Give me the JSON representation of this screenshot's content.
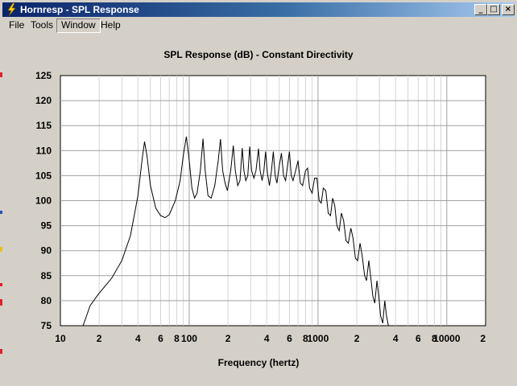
{
  "window": {
    "title": "Hornresp - SPL Response",
    "buttons": {
      "minimize": "_",
      "maximize": "□",
      "close": "×"
    }
  },
  "menu": {
    "items": [
      "File",
      "Tools",
      "Window",
      "Help"
    ],
    "active": "Window"
  },
  "colors": {
    "title_start": "#0a246a",
    "title_end": "#a6caf0",
    "face": "#d4d0c8",
    "plot_bg": "#ffffff",
    "curve": "#000000"
  },
  "chart_data": {
    "type": "line",
    "title": "SPL Response (dB) - Constant Directivity",
    "xlabel": "Frequency (hertz)",
    "ylabel": "",
    "x_scale": "log",
    "xlim": [
      10,
      20000
    ],
    "ylim": [
      75,
      125
    ],
    "grid": true,
    "x_tick_labels": [
      "10",
      "2",
      "4",
      "6",
      "8",
      "100",
      "2",
      "4",
      "6",
      "8",
      "1000",
      "2",
      "4",
      "6",
      "8",
      "10000",
      "2"
    ],
    "x_tick_values": [
      10,
      20,
      40,
      60,
      80,
      100,
      200,
      400,
      600,
      800,
      1000,
      2000,
      4000,
      6000,
      8000,
      10000,
      20000
    ],
    "y_tick_labels": [
      "125",
      "120",
      "115",
      "110",
      "105",
      "100",
      "95",
      "90",
      "85",
      "80",
      "75"
    ],
    "series": [
      {
        "points": [
          [
            15,
            75
          ],
          [
            17,
            79
          ],
          [
            20,
            81.5
          ],
          [
            25,
            84.5
          ],
          [
            30,
            88
          ],
          [
            35,
            93
          ],
          [
            40,
            101
          ],
          [
            43,
            108
          ],
          [
            45,
            111.8
          ],
          [
            47,
            109
          ],
          [
            50,
            103
          ],
          [
            55,
            98.5
          ],
          [
            60,
            97
          ],
          [
            65,
            96.6
          ],
          [
            70,
            97.2
          ],
          [
            78,
            100
          ],
          [
            85,
            104
          ],
          [
            90,
            109
          ],
          [
            95,
            112.8
          ],
          [
            100,
            108
          ],
          [
            105,
            102.5
          ],
          [
            110,
            100.5
          ],
          [
            115,
            101.5
          ],
          [
            122,
            106
          ],
          [
            128,
            112.4
          ],
          [
            133,
            106
          ],
          [
            140,
            101
          ],
          [
            148,
            100.5
          ],
          [
            158,
            103
          ],
          [
            168,
            108
          ],
          [
            175,
            112.3
          ],
          [
            182,
            106
          ],
          [
            190,
            103.5
          ],
          [
            198,
            102
          ],
          [
            210,
            106
          ],
          [
            220,
            111
          ],
          [
            228,
            106
          ],
          [
            238,
            103
          ],
          [
            248,
            104
          ],
          [
            258,
            110.5
          ],
          [
            266,
            106
          ],
          [
            275,
            104
          ],
          [
            285,
            105
          ],
          [
            295,
            110.8
          ],
          [
            305,
            106
          ],
          [
            318,
            104.5
          ],
          [
            330,
            106
          ],
          [
            345,
            110.4
          ],
          [
            355,
            106
          ],
          [
            368,
            104
          ],
          [
            380,
            106
          ],
          [
            392,
            109.8
          ],
          [
            405,
            105.5
          ],
          [
            420,
            103
          ],
          [
            435,
            106
          ],
          [
            450,
            109.8
          ],
          [
            465,
            105
          ],
          [
            480,
            103.5
          ],
          [
            500,
            107
          ],
          [
            520,
            109.5
          ],
          [
            540,
            105
          ],
          [
            560,
            104
          ],
          [
            580,
            107
          ],
          [
            600,
            109.8
          ],
          [
            620,
            105
          ],
          [
            640,
            104
          ],
          [
            670,
            106
          ],
          [
            700,
            108
          ],
          [
            730,
            103.5
          ],
          [
            760,
            103
          ],
          [
            800,
            106
          ],
          [
            830,
            106.5
          ],
          [
            860,
            102.5
          ],
          [
            900,
            101.5
          ],
          [
            940,
            104.5
          ],
          [
            980,
            104.5
          ],
          [
            1020,
            100
          ],
          [
            1060,
            99.5
          ],
          [
            1100,
            102.5
          ],
          [
            1150,
            102
          ],
          [
            1200,
            97.5
          ],
          [
            1250,
            97
          ],
          [
            1300,
            100.5
          ],
          [
            1350,
            99
          ],
          [
            1400,
            95
          ],
          [
            1460,
            94
          ],
          [
            1520,
            97.5
          ],
          [
            1580,
            96
          ],
          [
            1650,
            92
          ],
          [
            1720,
            91.5
          ],
          [
            1800,
            94.5
          ],
          [
            1870,
            92.5
          ],
          [
            1950,
            88.5
          ],
          [
            2030,
            88
          ],
          [
            2120,
            91.5
          ],
          [
            2200,
            89
          ],
          [
            2300,
            85
          ],
          [
            2380,
            84
          ],
          [
            2480,
            88
          ],
          [
            2560,
            85
          ],
          [
            2660,
            81
          ],
          [
            2760,
            79.5
          ],
          [
            2870,
            84
          ],
          [
            2960,
            81
          ],
          [
            3060,
            77
          ],
          [
            3180,
            75.5
          ],
          [
            3300,
            80
          ],
          [
            3400,
            77
          ],
          [
            3520,
            75
          ]
        ]
      }
    ]
  }
}
